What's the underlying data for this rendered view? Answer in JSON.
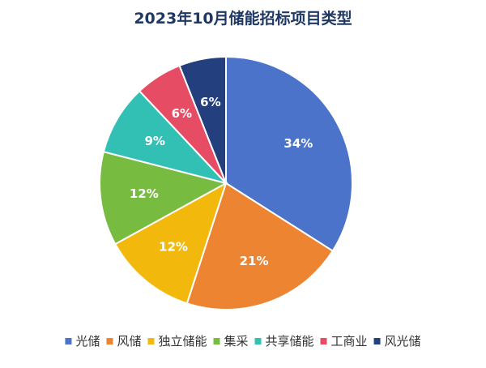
{
  "chart_data": {
    "type": "pie",
    "title": "2023年10月储能招标项目类型",
    "categories": [
      "光储",
      "风储",
      "独立储能",
      "集采",
      "共享储能",
      "工商业",
      "风光储"
    ],
    "values": [
      34,
      21,
      12,
      12,
      9,
      6,
      6
    ],
    "labels": [
      "34%",
      "21%",
      "12%",
      "12%",
      "9%",
      "6%",
      "6%"
    ],
    "colors": [
      "#4a73c9",
      "#ed8432",
      "#f2b90c",
      "#77bb41",
      "#33c0b4",
      "#e64c63",
      "#233f7e"
    ],
    "legend": "bottom"
  }
}
